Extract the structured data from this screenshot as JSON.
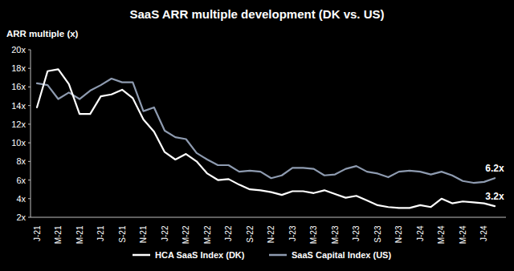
{
  "chart_data": {
    "type": "line",
    "title": "SaaS ARR multiple development (DK vs. US)",
    "y_label": "ARR multiple (x)",
    "categories": [
      "J-21",
      null,
      "M-21",
      null,
      "M-21",
      null,
      "J-21",
      null,
      "S-21",
      null,
      "N-21",
      null,
      "J-22",
      null,
      "M-22",
      null,
      "M-22",
      null,
      "J-22",
      null,
      "S-22",
      null,
      "N-22",
      null,
      "J-23",
      null,
      "M-23",
      null,
      "M-23",
      null,
      "J-23",
      null,
      "S-23",
      null,
      "N-23",
      null,
      "J-24",
      null,
      "M-24",
      null,
      "M-24",
      null,
      "J-24",
      null
    ],
    "series": [
      {
        "name": "HCA SaaS Index (DK)",
        "color": "#ffffff",
        "values": [
          13.8,
          17.7,
          17.9,
          16.3,
          13.1,
          13.1,
          15.0,
          15.2,
          15.7,
          14.8,
          12.5,
          11.2,
          9.0,
          8.2,
          8.8,
          8.0,
          6.7,
          6.0,
          6.1,
          5.5,
          5.0,
          4.9,
          4.7,
          4.4,
          4.8,
          4.8,
          4.6,
          4.9,
          4.5,
          4.1,
          4.3,
          3.8,
          3.3,
          3.1,
          3.0,
          3.0,
          3.3,
          3.1,
          4.0,
          3.5,
          3.7,
          3.6,
          3.5,
          3.2
        ],
        "value_labels": [
          null,
          null,
          null,
          null,
          null,
          null,
          null,
          null,
          null,
          null,
          null,
          null,
          null,
          null,
          null,
          null,
          null,
          null,
          null,
          null,
          null,
          null,
          null,
          null,
          null,
          null,
          null,
          null,
          null,
          null,
          null,
          null,
          null,
          null,
          null,
          null,
          null,
          null,
          null,
          null,
          null,
          null,
          null,
          "3.2x"
        ]
      },
      {
        "name": "SaaS Capital Index (US)",
        "color": "#8e9bb0",
        "values": [
          16.4,
          16.2,
          14.7,
          15.4,
          14.7,
          15.6,
          16.2,
          16.9,
          16.5,
          16.5,
          13.4,
          13.8,
          11.3,
          10.6,
          10.4,
          8.9,
          8.2,
          7.6,
          7.6,
          6.9,
          7.0,
          6.9,
          6.2,
          6.5,
          7.3,
          7.3,
          7.2,
          6.5,
          6.6,
          7.2,
          7.5,
          6.9,
          6.7,
          6.3,
          6.9,
          7.0,
          6.9,
          6.6,
          6.9,
          6.5,
          5.9,
          5.7,
          5.8,
          6.2
        ],
        "value_labels": [
          null,
          null,
          null,
          null,
          null,
          null,
          null,
          null,
          null,
          null,
          null,
          null,
          null,
          null,
          null,
          null,
          null,
          null,
          null,
          null,
          null,
          null,
          null,
          null,
          null,
          null,
          null,
          null,
          null,
          null,
          null,
          null,
          null,
          null,
          null,
          null,
          null,
          null,
          null,
          null,
          null,
          null,
          null,
          "6.2x"
        ]
      }
    ],
    "ylim": [
      2,
      20
    ],
    "yticks": [
      {
        "value": 2,
        "label": "2x"
      },
      {
        "value": 4,
        "label": "4x"
      },
      {
        "value": 6,
        "label": "6x"
      },
      {
        "value": 8,
        "label": "8x"
      },
      {
        "value": 10,
        "label": "10x"
      },
      {
        "value": 12,
        "label": "12x"
      },
      {
        "value": 14,
        "label": "14x"
      },
      {
        "value": 16,
        "label": "16x"
      },
      {
        "value": 18,
        "label": "18x"
      },
      {
        "value": 20,
        "label": "20x"
      }
    ],
    "grid": false,
    "legend": "bottom"
  }
}
